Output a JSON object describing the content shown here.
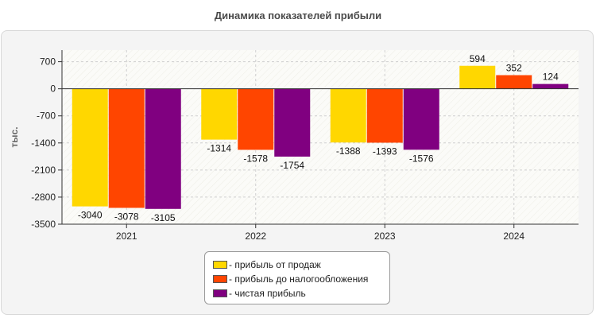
{
  "chart_data": {
    "type": "bar",
    "title": "Динамика показателей прибыли",
    "ylabel": "тыс.",
    "xlabel": "",
    "categories": [
      "2021",
      "2022",
      "2023",
      "2024"
    ],
    "ylim": [
      -3500,
      1000
    ],
    "yticks": [
      700,
      0,
      -700,
      -1400,
      -2100,
      -2800,
      -3500
    ],
    "grid": true,
    "legend_position": "bottom",
    "series": [
      {
        "name": "- прибыль от продаж",
        "color": "#FFD700",
        "values": [
          -3040,
          -1314,
          -1388,
          594
        ]
      },
      {
        "name": "- прибыль до налогообложения",
        "color": "#FF4500",
        "values": [
          -3078,
          -1578,
          -1393,
          352
        ]
      },
      {
        "name": "- чистая прибыль",
        "color": "#800080",
        "values": [
          -3105,
          -1754,
          -1576,
          124
        ]
      }
    ]
  }
}
